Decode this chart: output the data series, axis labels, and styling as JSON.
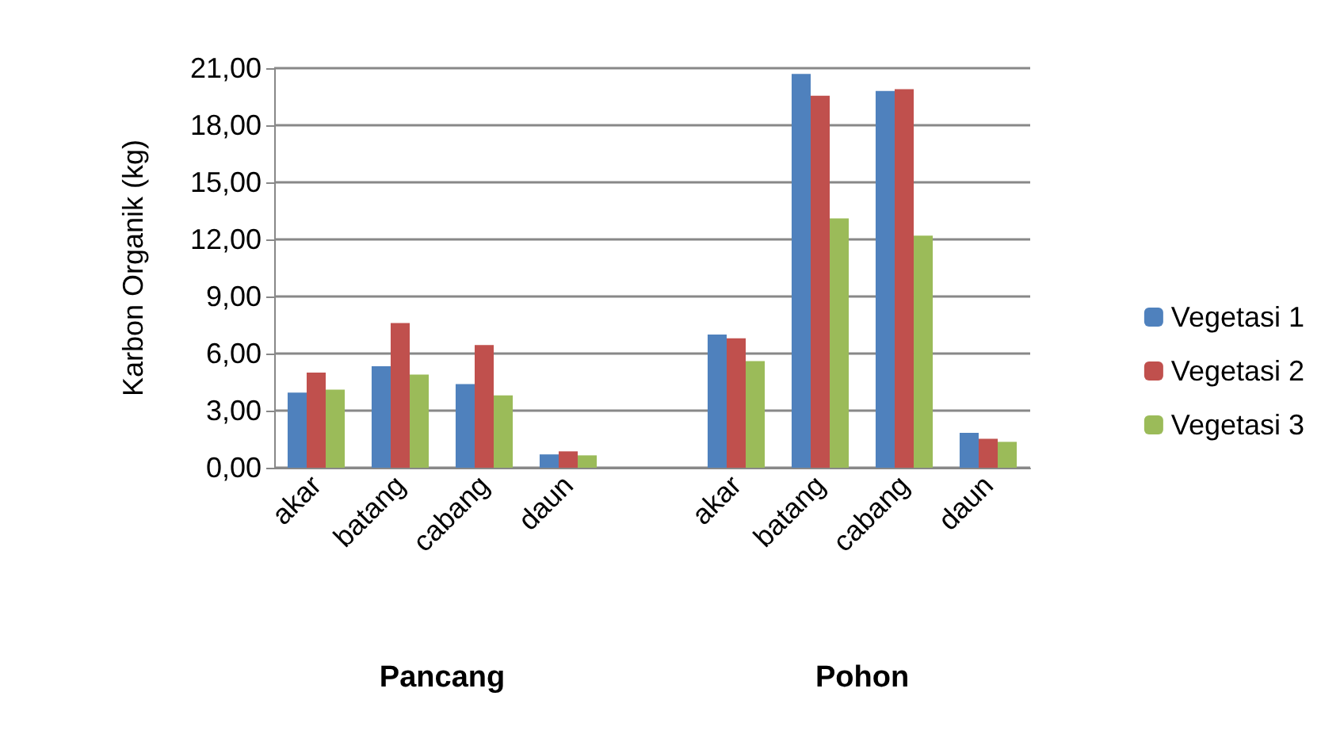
{
  "chart_data": {
    "type": "bar",
    "ylabel": "Karbon Organik (kg)",
    "categories": [
      "akar",
      "batang",
      "cabang",
      "daun",
      null,
      "akar",
      "batang",
      "cabang",
      "daun"
    ],
    "series": [
      {
        "name": "Vegetasi 1",
        "color": "#4f81bd",
        "values": [
          3.95,
          5.33,
          4.4,
          0.7,
          null,
          7.0,
          20.7,
          19.8,
          1.83
        ]
      },
      {
        "name": "Vegetasi 2",
        "color": "#c0504d",
        "values": [
          5.0,
          7.6,
          6.45,
          0.86,
          null,
          6.8,
          19.55,
          19.9,
          1.52
        ]
      },
      {
        "name": "Vegetasi 3",
        "color": "#9bbb59",
        "values": [
          4.1,
          4.9,
          3.8,
          0.65,
          null,
          5.6,
          13.1,
          12.2,
          1.36
        ]
      }
    ],
    "ylim": [
      0,
      21
    ],
    "yticks": [
      {
        "value": 0,
        "label": "0,00"
      },
      {
        "value": 3,
        "label": "3,00"
      },
      {
        "value": 6,
        "label": "6,00"
      },
      {
        "value": 9,
        "label": "9,00"
      },
      {
        "value": 12,
        "label": "12,00"
      },
      {
        "value": 15,
        "label": "15,00"
      },
      {
        "value": 18,
        "label": "18,00"
      },
      {
        "value": 21,
        "label": "21,00"
      }
    ],
    "grid": "y",
    "legend": "right",
    "annotations": [
      "Pancang",
      "Pohon"
    ]
  }
}
